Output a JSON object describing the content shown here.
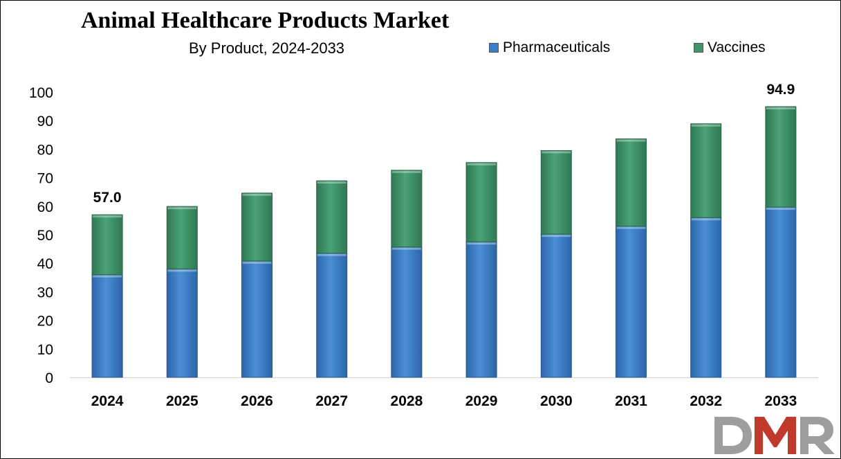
{
  "chart_data": {
    "type": "bar",
    "stacked": true,
    "title": "Animal Healthcare Products Market",
    "subtitle": "By Product, 2024-2033",
    "categories": [
      "2024",
      "2025",
      "2026",
      "2027",
      "2028",
      "2029",
      "2030",
      "2031",
      "2032",
      "2033"
    ],
    "series": [
      {
        "name": "Pharmaceuticals",
        "color": "#3a7fc5",
        "values": [
          36.0,
          38.0,
          40.8,
          43.5,
          45.7,
          47.5,
          50.2,
          53.0,
          56.0,
          59.7
        ]
      },
      {
        "name": "Vaccines",
        "color": "#3f9469",
        "values": [
          21.0,
          21.9,
          23.8,
          25.4,
          26.9,
          27.8,
          29.3,
          30.6,
          32.9,
          35.2
        ]
      }
    ],
    "data_labels": [
      {
        "category": "2024",
        "text": "57.0"
      },
      {
        "category": "2033",
        "text": "94.9"
      }
    ],
    "ylim": [
      0,
      100
    ],
    "yticks": [
      0,
      10,
      20,
      30,
      40,
      50,
      60,
      70,
      80,
      90,
      100
    ],
    "xlabel": "",
    "ylabel": "",
    "grid": false,
    "legend_position": "top-right"
  },
  "logo": {
    "text": "DMR",
    "colors": [
      "#9e9e9e",
      "#c0392b"
    ]
  }
}
